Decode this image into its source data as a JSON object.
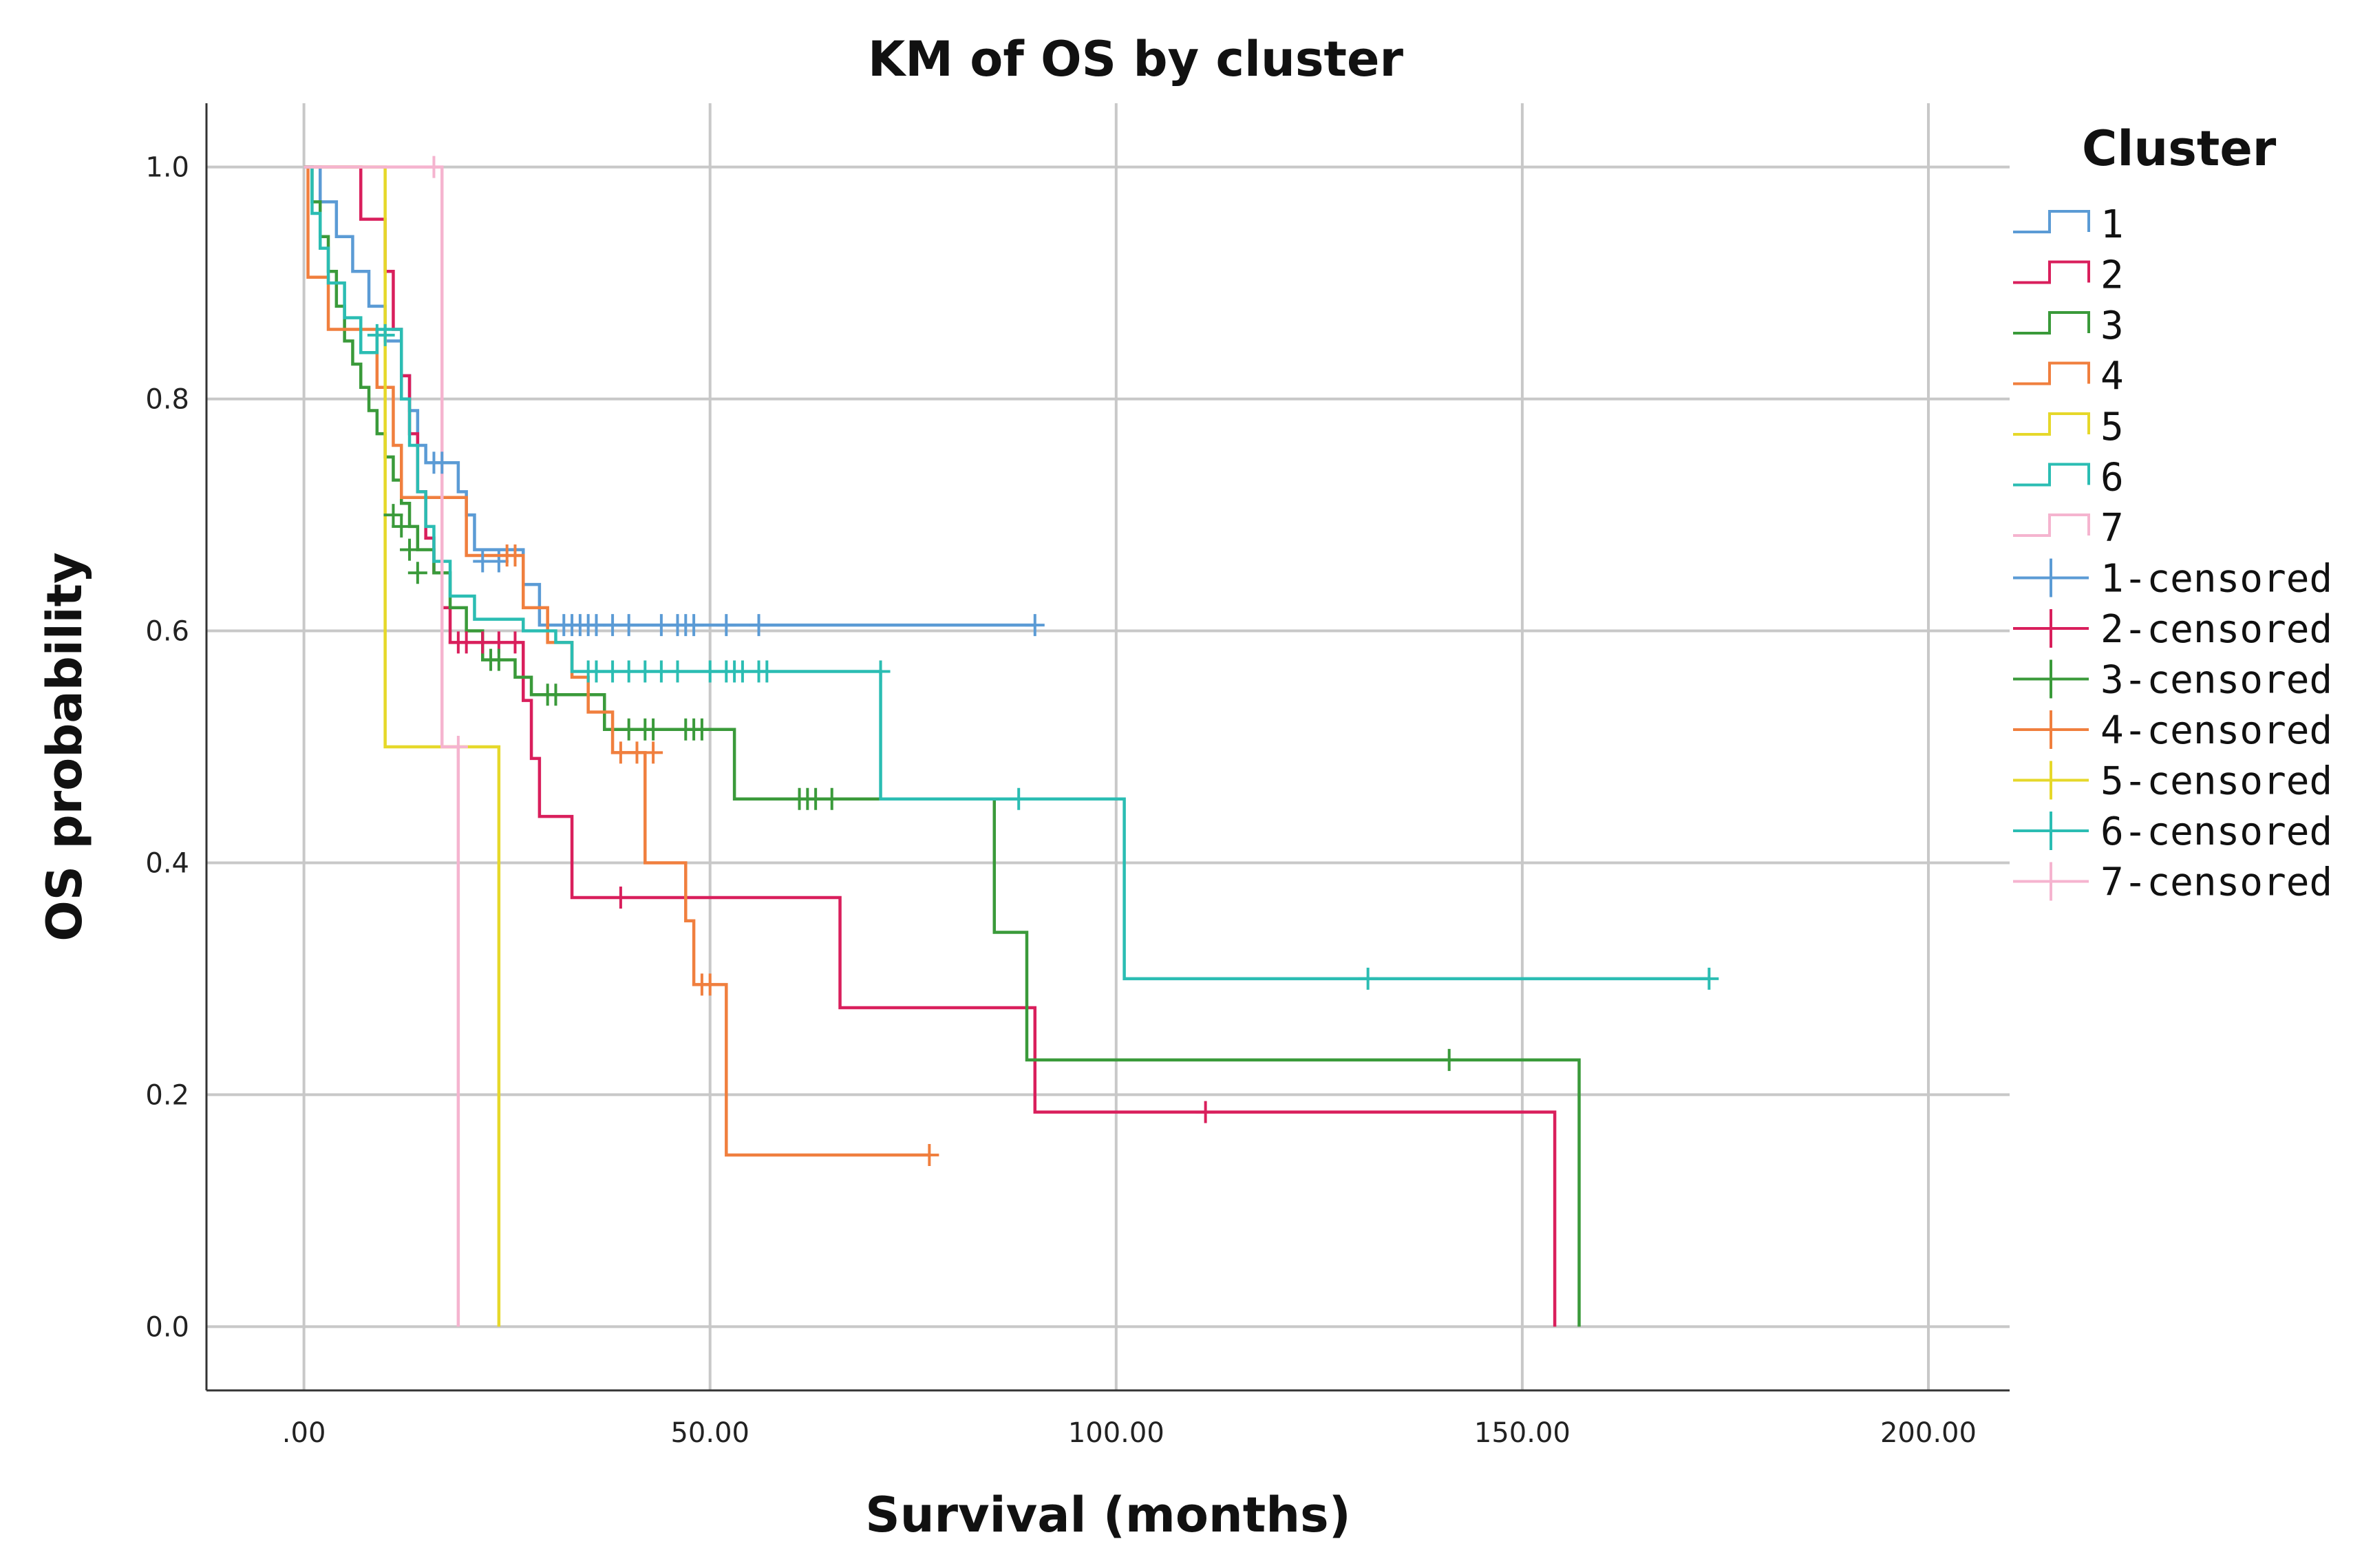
{
  "chart_data": {
    "type": "line",
    "subtype": "kaplan-meier-step",
    "title": "KM of OS by cluster",
    "xlabel": "Survival (months)",
    "ylabel": "OS probability",
    "xlim": [
      -12,
      210
    ],
    "ylim": [
      -0.055,
      1.055
    ],
    "x_ticks": [
      0,
      50,
      100,
      150,
      200
    ],
    "x_tick_labels": [
      ".00",
      "50.00",
      "100.00",
      "150.00",
      "200.00"
    ],
    "y_ticks": [
      0,
      0.2,
      0.4,
      0.6,
      0.8,
      1.0
    ],
    "y_tick_labels": [
      "0.0",
      "0.2",
      "0.4",
      "0.6",
      "0.8",
      "1.0"
    ],
    "grid": true,
    "legend_title": "Cluster",
    "legend_position": "right",
    "legend_entries": [
      "1",
      "2",
      "3",
      "4",
      "5",
      "6",
      "7",
      "1-censored",
      "2-censored",
      "3-censored",
      "4-censored",
      "5-censored",
      "6-censored",
      "7-censored"
    ],
    "series": [
      {
        "name": "1",
        "color": "#5b9bd5",
        "steps": [
          [
            0,
            1.0
          ],
          [
            2,
            0.97
          ],
          [
            4,
            0.94
          ],
          [
            6,
            0.91
          ],
          [
            8,
            0.88
          ],
          [
            10,
            0.85
          ],
          [
            12,
            0.82
          ],
          [
            13,
            0.79
          ],
          [
            14,
            0.76
          ],
          [
            15,
            0.745
          ],
          [
            19,
            0.72
          ],
          [
            20,
            0.7
          ],
          [
            21,
            0.67
          ],
          [
            27,
            0.64
          ],
          [
            29,
            0.605
          ],
          [
            90,
            0.605
          ]
        ],
        "censored": [
          [
            16,
            0.745
          ],
          [
            17,
            0.745
          ],
          [
            22,
            0.66
          ],
          [
            24,
            0.66
          ],
          [
            32,
            0.605
          ],
          [
            33,
            0.605
          ],
          [
            34,
            0.605
          ],
          [
            35,
            0.605
          ],
          [
            36,
            0.605
          ],
          [
            38,
            0.605
          ],
          [
            40,
            0.605
          ],
          [
            44,
            0.605
          ],
          [
            46,
            0.605
          ],
          [
            47,
            0.605
          ],
          [
            48,
            0.605
          ],
          [
            52,
            0.605
          ],
          [
            56,
            0.605
          ],
          [
            90,
            0.605
          ]
        ]
      },
      {
        "name": "2",
        "color": "#d91f5c",
        "steps": [
          [
            0,
            1.0
          ],
          [
            7,
            0.955
          ],
          [
            10,
            0.91
          ],
          [
            11,
            0.86
          ],
          [
            12,
            0.82
          ],
          [
            13,
            0.77
          ],
          [
            14,
            0.72
          ],
          [
            15,
            0.68
          ],
          [
            16,
            0.65
          ],
          [
            17,
            0.62
          ],
          [
            18,
            0.59
          ],
          [
            27,
            0.54
          ],
          [
            28,
            0.49
          ],
          [
            29,
            0.44
          ],
          [
            33,
            0.37
          ],
          [
            66,
            0.275
          ],
          [
            90,
            0.185
          ],
          [
            154,
            0.0
          ]
        ],
        "censored": [
          [
            19,
            0.59
          ],
          [
            20,
            0.59
          ],
          [
            22,
            0.59
          ],
          [
            24,
            0.59
          ],
          [
            26,
            0.59
          ],
          [
            39,
            0.37
          ],
          [
            111,
            0.185
          ]
        ]
      },
      {
        "name": "3",
        "color": "#3a9a3a",
        "steps": [
          [
            0,
            1.0
          ],
          [
            1,
            0.97
          ],
          [
            2,
            0.94
          ],
          [
            3,
            0.91
          ],
          [
            4,
            0.88
          ],
          [
            5,
            0.85
          ],
          [
            6,
            0.83
          ],
          [
            7,
            0.81
          ],
          [
            8,
            0.79
          ],
          [
            9,
            0.77
          ],
          [
            10,
            0.75
          ],
          [
            11,
            0.73
          ],
          [
            12,
            0.71
          ],
          [
            13,
            0.69
          ],
          [
            14,
            0.67
          ],
          [
            16,
            0.65
          ],
          [
            18,
            0.62
          ],
          [
            20,
            0.6
          ],
          [
            22,
            0.575
          ],
          [
            26,
            0.56
          ],
          [
            28,
            0.545
          ],
          [
            37,
            0.515
          ],
          [
            53,
            0.455
          ],
          [
            85,
            0.34
          ],
          [
            89,
            0.23
          ],
          [
            157,
            0.0
          ]
        ],
        "censored": [
          [
            11,
            0.7
          ],
          [
            12,
            0.69
          ],
          [
            13,
            0.67
          ],
          [
            14,
            0.65
          ],
          [
            23,
            0.575
          ],
          [
            24,
            0.575
          ],
          [
            30,
            0.545
          ],
          [
            31,
            0.545
          ],
          [
            40,
            0.515
          ],
          [
            42,
            0.515
          ],
          [
            43,
            0.515
          ],
          [
            47,
            0.515
          ],
          [
            48,
            0.515
          ],
          [
            49,
            0.515
          ],
          [
            61,
            0.455
          ],
          [
            62,
            0.455
          ],
          [
            63,
            0.455
          ],
          [
            65,
            0.455
          ],
          [
            141,
            0.23
          ]
        ]
      },
      {
        "name": "4",
        "color": "#f07f3e",
        "steps": [
          [
            0,
            1.0
          ],
          [
            0.5,
            0.905
          ],
          [
            3,
            0.86
          ],
          [
            9,
            0.81
          ],
          [
            11,
            0.76
          ],
          [
            12,
            0.715
          ],
          [
            20,
            0.665
          ],
          [
            27,
            0.62
          ],
          [
            30,
            0.59
          ],
          [
            33,
            0.56
          ],
          [
            35,
            0.53
          ],
          [
            38,
            0.495
          ],
          [
            42,
            0.4
          ],
          [
            47,
            0.35
          ],
          [
            48,
            0.295
          ],
          [
            52,
            0.148
          ],
          [
            77,
            0.148
          ]
        ],
        "censored": [
          [
            25,
            0.665
          ],
          [
            26,
            0.665
          ],
          [
            39,
            0.495
          ],
          [
            41,
            0.495
          ],
          [
            43,
            0.495
          ],
          [
            49,
            0.295
          ],
          [
            50,
            0.295
          ],
          [
            77,
            0.148
          ]
        ]
      },
      {
        "name": "5",
        "color": "#e6d82a",
        "steps": [
          [
            0,
            1.0
          ],
          [
            10,
            0.5
          ],
          [
            24,
            0.0
          ]
        ],
        "censored": []
      },
      {
        "name": "6",
        "color": "#2bbdb3",
        "steps": [
          [
            0,
            1.0
          ],
          [
            1,
            0.96
          ],
          [
            2,
            0.93
          ],
          [
            3,
            0.9
          ],
          [
            5,
            0.87
          ],
          [
            7,
            0.84
          ],
          [
            9,
            0.86
          ],
          [
            12,
            0.8
          ],
          [
            13,
            0.76
          ],
          [
            14,
            0.72
          ],
          [
            15,
            0.69
          ],
          [
            16,
            0.66
          ],
          [
            18,
            0.63
          ],
          [
            21,
            0.61
          ],
          [
            27,
            0.6
          ],
          [
            31,
            0.59
          ],
          [
            33,
            0.565
          ],
          [
            71,
            0.455
          ],
          [
            101,
            0.3
          ],
          [
            173,
            0.3
          ]
        ],
        "censored": [
          [
            9,
            0.855
          ],
          [
            10,
            0.855
          ],
          [
            35,
            0.565
          ],
          [
            36,
            0.565
          ],
          [
            38,
            0.565
          ],
          [
            40,
            0.565
          ],
          [
            42,
            0.565
          ],
          [
            44,
            0.565
          ],
          [
            46,
            0.565
          ],
          [
            50,
            0.565
          ],
          [
            52,
            0.565
          ],
          [
            53,
            0.565
          ],
          [
            54,
            0.565
          ],
          [
            56,
            0.565
          ],
          [
            57,
            0.565
          ],
          [
            71,
            0.565
          ],
          [
            88,
            0.455
          ],
          [
            131,
            0.3
          ],
          [
            173,
            0.3
          ]
        ]
      },
      {
        "name": "7",
        "color": "#f5b4cf",
        "steps": [
          [
            0,
            1.0
          ],
          [
            16,
            1.0
          ],
          [
            17,
            0.5
          ],
          [
            19,
            0.0
          ]
        ],
        "censored": [
          [
            16,
            1.0
          ],
          [
            19,
            0.5
          ]
        ]
      }
    ]
  }
}
